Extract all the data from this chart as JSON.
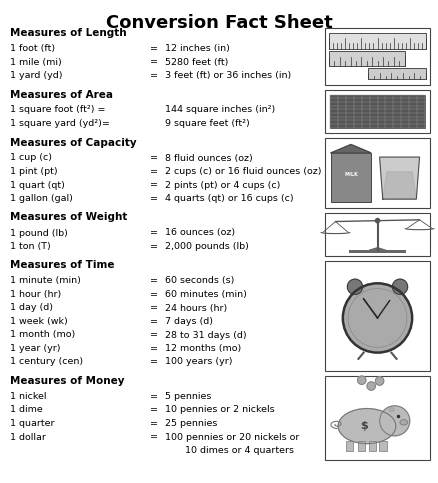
{
  "title": "Conversion Fact Sheet",
  "background_color": "#ffffff",
  "sections": [
    {
      "heading": "Measures of Length",
      "rows": [
        [
          "1 foot (ft)",
          "12 inches (in)"
        ],
        [
          "1 mile (mi)",
          "5280 feet (ft)"
        ],
        [
          "1 yard (yd)",
          "3 feet (ft) or 36 inches (in)"
        ]
      ]
    },
    {
      "heading": "Measures of Area",
      "rows": [
        [
          "1 square foot (ft²) =",
          "144 square inches (in²)"
        ],
        [
          "1 square yard (yd²)=",
          "9 square feet (ft²)"
        ]
      ],
      "no_eq": true
    },
    {
      "heading": "Measures of Capacity",
      "rows": [
        [
          "1 cup (c)",
          "8 fluid ounces (oz)"
        ],
        [
          "1 pint (pt)",
          "2 cups (c) or 16 fluid ounces (oz)"
        ],
        [
          "1 quart (qt)",
          "2 pints (pt) or 4 cups (c)"
        ],
        [
          "1 gallon (gal)",
          "4 quarts (qt) or 16 cups (c)"
        ]
      ]
    },
    {
      "heading": "Measures of Weight",
      "rows": [
        [
          "1 pound (lb)",
          "16 ounces (oz)"
        ],
        [
          "1 ton (T)",
          "2,000 pounds (lb)"
        ]
      ]
    },
    {
      "heading": "Measures of Time",
      "rows": [
        [
          "1 minute (min)",
          "60 seconds (s)"
        ],
        [
          "1 hour (hr)",
          "60 minutes (min)"
        ],
        [
          "1 day (d)",
          "24 hours (hr)"
        ],
        [
          "1 week (wk)",
          "7 days (d)"
        ],
        [
          "1 month (mo)",
          "28 to 31 days (d)"
        ],
        [
          "1 year (yr)",
          "12 months (mo)"
        ],
        [
          "1 century (cen)",
          "100 years (yr)"
        ]
      ]
    },
    {
      "heading": "Measures of Money",
      "rows": [
        [
          "1 nickel",
          "5 pennies"
        ],
        [
          "1 dime",
          "10 pennies or 2 nickels"
        ],
        [
          "1 quarter",
          "25 pennies"
        ],
        [
          "1 dollar",
          "100 pennies or 20 nickels or"
        ],
        [
          "",
          "10 dimes or 4 quarters"
        ]
      ]
    }
  ],
  "title_fontsize": 13,
  "heading_fontsize": 7.5,
  "body_fontsize": 6.8,
  "text_color": "#000000"
}
